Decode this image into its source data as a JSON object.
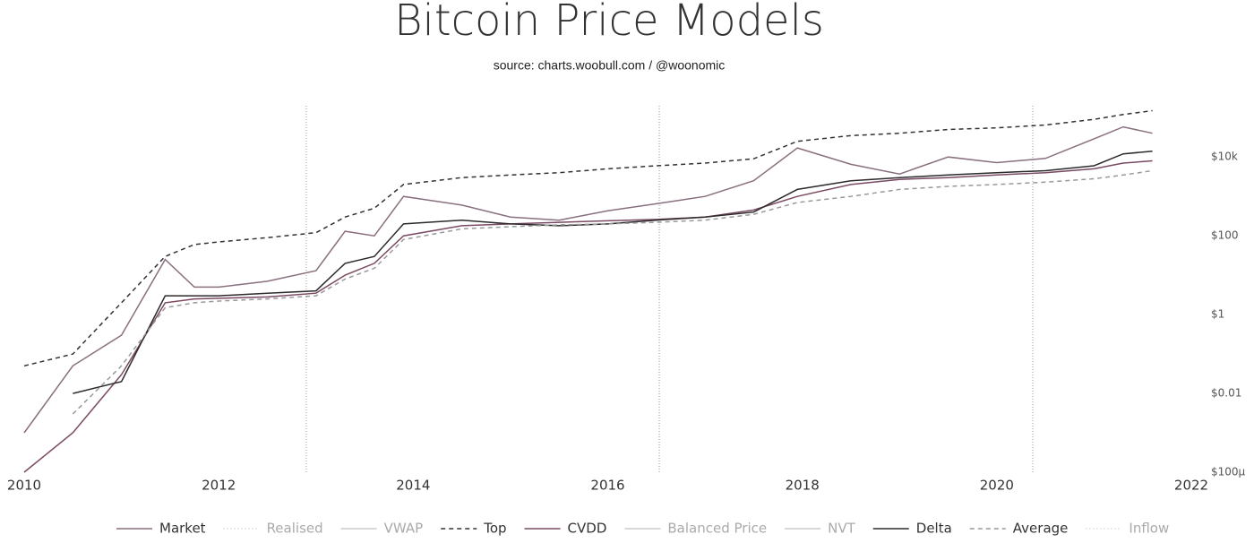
{
  "chart_data": {
    "type": "line",
    "title": "Bitcoin Price Models",
    "subtitle": "source: charts.woobull.com / @woonomic",
    "log_y": true,
    "xlim": [
      2010,
      2022
    ],
    "xticks": [
      2010,
      2012,
      2014,
      2016,
      2018,
      2020,
      2022
    ],
    "ylim": [
      0.0001,
      200000
    ],
    "yticks": [
      {
        "value": 0.0001,
        "label": "$100µ"
      },
      {
        "value": 0.01,
        "label": "$0.01"
      },
      {
        "value": 1,
        "label": "$1"
      },
      {
        "value": 100,
        "label": "$100"
      },
      {
        "value": 10000,
        "label": "$10k"
      }
    ],
    "vlines": [
      2012.9,
      2016.53,
      2020.37
    ],
    "x": [
      2010.0,
      2010.5,
      2011.0,
      2011.45,
      2011.75,
      2012.0,
      2012.5,
      2013.0,
      2013.3,
      2013.6,
      2013.9,
      2014.5,
      2015.0,
      2015.5,
      2016.0,
      2016.5,
      2017.0,
      2017.5,
      2017.95,
      2018.5,
      2019.0,
      2019.5,
      2020.0,
      2020.5,
      2021.0,
      2021.3,
      2021.6
    ],
    "series": [
      {
        "name": "Market",
        "color": "#8a6f7e",
        "dash": "solid",
        "hidden": false,
        "values": [
          0.001,
          0.05,
          0.3,
          25,
          5,
          5,
          7,
          13,
          130,
          100,
          1000,
          600,
          300,
          250,
          430,
          650,
          1000,
          2500,
          17000,
          6500,
          3700,
          10000,
          7200,
          9200,
          29000,
          58000,
          40000
        ]
      },
      {
        "name": "Realised",
        "color": "#c8c8c8",
        "dash": "dotted",
        "hidden": true
      },
      {
        "name": "VWAP",
        "color": "#c8c8c8",
        "dash": "solid",
        "hidden": true
      },
      {
        "name": "Top",
        "color": "#333333",
        "dash": "dashed",
        "hidden": false,
        "values": [
          0.05,
          0.1,
          2,
          30,
          60,
          70,
          90,
          120,
          300,
          500,
          2000,
          3000,
          3500,
          4000,
          5000,
          6000,
          7000,
          9000,
          25000,
          35000,
          40000,
          50000,
          55000,
          65000,
          90000,
          120000,
          150000
        ]
      },
      {
        "name": "CVDD",
        "color": "#7a4a63",
        "dash": "solid",
        "hidden": false,
        "values": [
          0.0001,
          0.001,
          0.03,
          2,
          2.5,
          2.6,
          2.8,
          3.5,
          10,
          20,
          100,
          180,
          200,
          220,
          240,
          260,
          300,
          450,
          1000,
          2000,
          2700,
          3000,
          3500,
          4000,
          5000,
          7000,
          8000
        ]
      },
      {
        "name": "Balanced Price",
        "color": "#c8c8c8",
        "dash": "solid",
        "hidden": true
      },
      {
        "name": "NVT",
        "color": "#c8c8c8",
        "dash": "solid",
        "hidden": true
      },
      {
        "name": "Delta",
        "color": "#2e2a2c",
        "dash": "solid",
        "hidden": false,
        "values": [
          null,
          0.01,
          0.02,
          3,
          3,
          3,
          3.5,
          4,
          20,
          30,
          200,
          250,
          200,
          180,
          200,
          250,
          300,
          400,
          1500,
          2500,
          3000,
          3500,
          4000,
          4500,
          6000,
          12000,
          14000
        ]
      },
      {
        "name": "Average",
        "color": "#999999",
        "dash": "dashed",
        "hidden": false,
        "values": [
          null,
          0.003,
          0.05,
          1.5,
          2,
          2.2,
          2.5,
          3,
          8,
          15,
          80,
          150,
          170,
          190,
          200,
          220,
          250,
          350,
          700,
          1000,
          1500,
          1800,
          2000,
          2300,
          2800,
          3500,
          4500
        ]
      },
      {
        "name": "Inflow",
        "color": "#c8c8c8",
        "dash": "dotted",
        "hidden": true
      }
    ]
  }
}
